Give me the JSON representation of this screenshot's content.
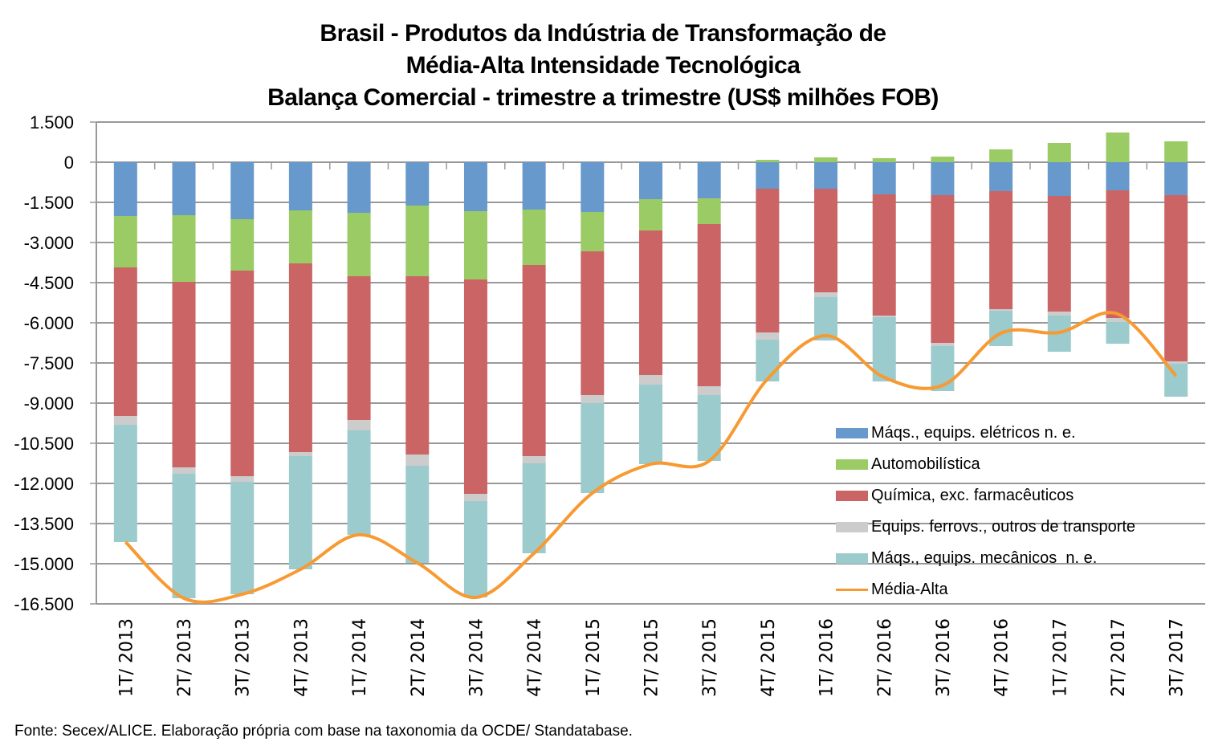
{
  "chart_data": {
    "type": "bar",
    "stacked": true,
    "title": [
      "Brasil - Produtos da Indústria de Transformação de",
      "Média-Alta Intensidade Tecnológica",
      "Balança Comercial - trimestre a trimestre (US$ milhões FOB)"
    ],
    "xlabel": "",
    "ylabel": "",
    "ylim": [
      -16500,
      1500
    ],
    "yticks": [
      1500,
      0,
      -1500,
      -3000,
      -4500,
      -6000,
      -7500,
      -9000,
      -10500,
      -12000,
      -13500,
      -15000,
      -16500
    ],
    "ytick_labels": [
      "1.500",
      "0",
      "-1.500",
      "-3.000",
      "-4.500",
      "-6.000",
      "-7.500",
      "-9.000",
      "-10.500",
      "-12.000",
      "-13.500",
      "-15.000",
      "-16.500"
    ],
    "grid": true,
    "legend_position": "bottom-right",
    "categories": [
      "1T/ 2013",
      "2T/ 2013",
      "3T/ 2013",
      "4T/ 2013",
      "1T/ 2014",
      "2T/ 2014",
      "3T/ 2014",
      "4T/ 2014",
      "1T/ 2015",
      "2T/ 2015",
      "3T/ 2015",
      "4T/ 2015",
      "1T/ 2016",
      "2T/ 2016",
      "3T/ 2016",
      "4T/ 2016",
      "1T/ 2017",
      "2T/ 2017",
      "3T/ 2017"
    ],
    "series": [
      {
        "name": "Máqs., equips. elétricos n. e.",
        "type": "bar",
        "color": "#6799CC",
        "values": [
          -2010,
          -1980,
          -2130,
          -1800,
          -1890,
          -1620,
          -1830,
          -1770,
          -1860,
          -1380,
          -1350,
          -990,
          -990,
          -1200,
          -1230,
          -1080,
          -1260,
          -1050,
          -1230
        ]
      },
      {
        "name": "Automobilística",
        "type": "bar",
        "color": "#9BCB65",
        "values": [
          -1920,
          -2490,
          -1920,
          -1980,
          -2370,
          -2640,
          -2550,
          -2070,
          -1470,
          -1170,
          -960,
          90,
          180,
          150,
          210,
          480,
          720,
          1110,
          780
        ]
      },
      {
        "name": "Química, exc. farmacêuticos",
        "type": "bar",
        "color": "#CB6565",
        "values": [
          -5550,
          -6930,
          -7680,
          -7050,
          -5370,
          -6660,
          -8010,
          -7140,
          -5370,
          -5400,
          -6060,
          -5370,
          -3870,
          -4530,
          -5520,
          -4410,
          -4320,
          -4770,
          -6210
        ]
      },
      {
        "name": "Equips. ferrovs., outros de transporte",
        "type": "bar",
        "color": "#CCCCCC",
        "values": [
          -330,
          -240,
          -210,
          -150,
          -390,
          -420,
          -270,
          -270,
          -300,
          -360,
          -330,
          -270,
          -180,
          -60,
          -120,
          -60,
          -150,
          -150,
          -90
        ]
      },
      {
        "name": "Máqs., equips. mecânicos  n. e.",
        "type": "bar",
        "color": "#9BCBCC",
        "values": [
          -4380,
          -4650,
          -4200,
          -4230,
          -3900,
          -3630,
          -3600,
          -3360,
          -3360,
          -2970,
          -2460,
          -1560,
          -1620,
          -2400,
          -1680,
          -1320,
          -1350,
          -810,
          -1230
        ]
      },
      {
        "name": "Média-Alta",
        "type": "line",
        "color": "#F79A32",
        "values": [
          -14190,
          -16290,
          -16140,
          -15210,
          -13920,
          -14970,
          -16260,
          -14610,
          -12360,
          -11280,
          -11160,
          -8100,
          -6480,
          -8040,
          -8340,
          -6390,
          -6360,
          -5670,
          -7980
        ]
      }
    ]
  },
  "footer": "Fonte: Secex/ALICE. Elaboração própria com base na taxonomia da OCDE/ Standatabase."
}
